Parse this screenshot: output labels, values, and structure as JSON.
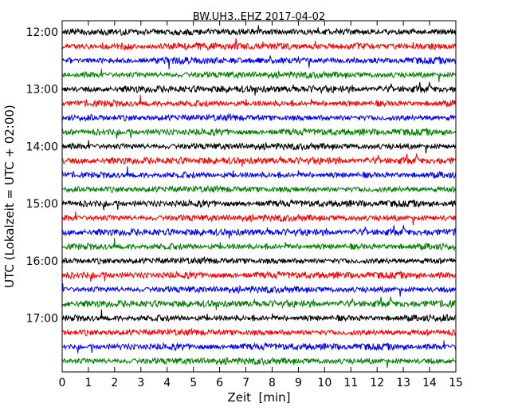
{
  "chart_data": {
    "type": "line",
    "title": "BW.UH3..EHZ 2017-04-02",
    "xlabel": "Zeit  [min]",
    "ylabel": "UTC (Lokalzeit = UTC + 02:00)",
    "xlim": [
      0,
      15
    ],
    "x_ticks": [
      "0",
      "1",
      "2",
      "3",
      "4",
      "5",
      "6",
      "7",
      "8",
      "9",
      "10",
      "11",
      "12",
      "13",
      "14",
      "15"
    ],
    "y_ticks": [
      "12:00",
      "13:00",
      "14:00",
      "15:00",
      "16:00",
      "17:00"
    ],
    "grid": false,
    "legend": "none",
    "trace_interval_min": 15,
    "trace_colors": [
      "#000000",
      "#ff0000",
      "#0000ff",
      "#008000"
    ],
    "traces": [
      {
        "start": "12:00",
        "color": "#000000"
      },
      {
        "start": "12:15",
        "color": "#ff0000"
      },
      {
        "start": "12:30",
        "color": "#0000ff"
      },
      {
        "start": "12:45",
        "color": "#008000"
      },
      {
        "start": "13:00",
        "color": "#000000"
      },
      {
        "start": "13:15",
        "color": "#ff0000"
      },
      {
        "start": "13:30",
        "color": "#0000ff"
      },
      {
        "start": "13:45",
        "color": "#008000"
      },
      {
        "start": "14:00",
        "color": "#000000"
      },
      {
        "start": "14:15",
        "color": "#ff0000"
      },
      {
        "start": "14:30",
        "color": "#0000ff"
      },
      {
        "start": "14:45",
        "color": "#008000"
      },
      {
        "start": "15:00",
        "color": "#000000"
      },
      {
        "start": "15:15",
        "color": "#ff0000"
      },
      {
        "start": "15:30",
        "color": "#0000ff"
      },
      {
        "start": "15:45",
        "color": "#008000"
      },
      {
        "start": "16:00",
        "color": "#000000"
      },
      {
        "start": "16:15",
        "color": "#ff0000"
      },
      {
        "start": "16:30",
        "color": "#0000ff"
      },
      {
        "start": "16:45",
        "color": "#008000"
      },
      {
        "start": "17:00",
        "color": "#000000"
      },
      {
        "start": "17:15",
        "color": "#ff0000"
      },
      {
        "start": "17:30",
        "color": "#0000ff"
      },
      {
        "start": "17:45",
        "color": "#008000"
      }
    ]
  }
}
